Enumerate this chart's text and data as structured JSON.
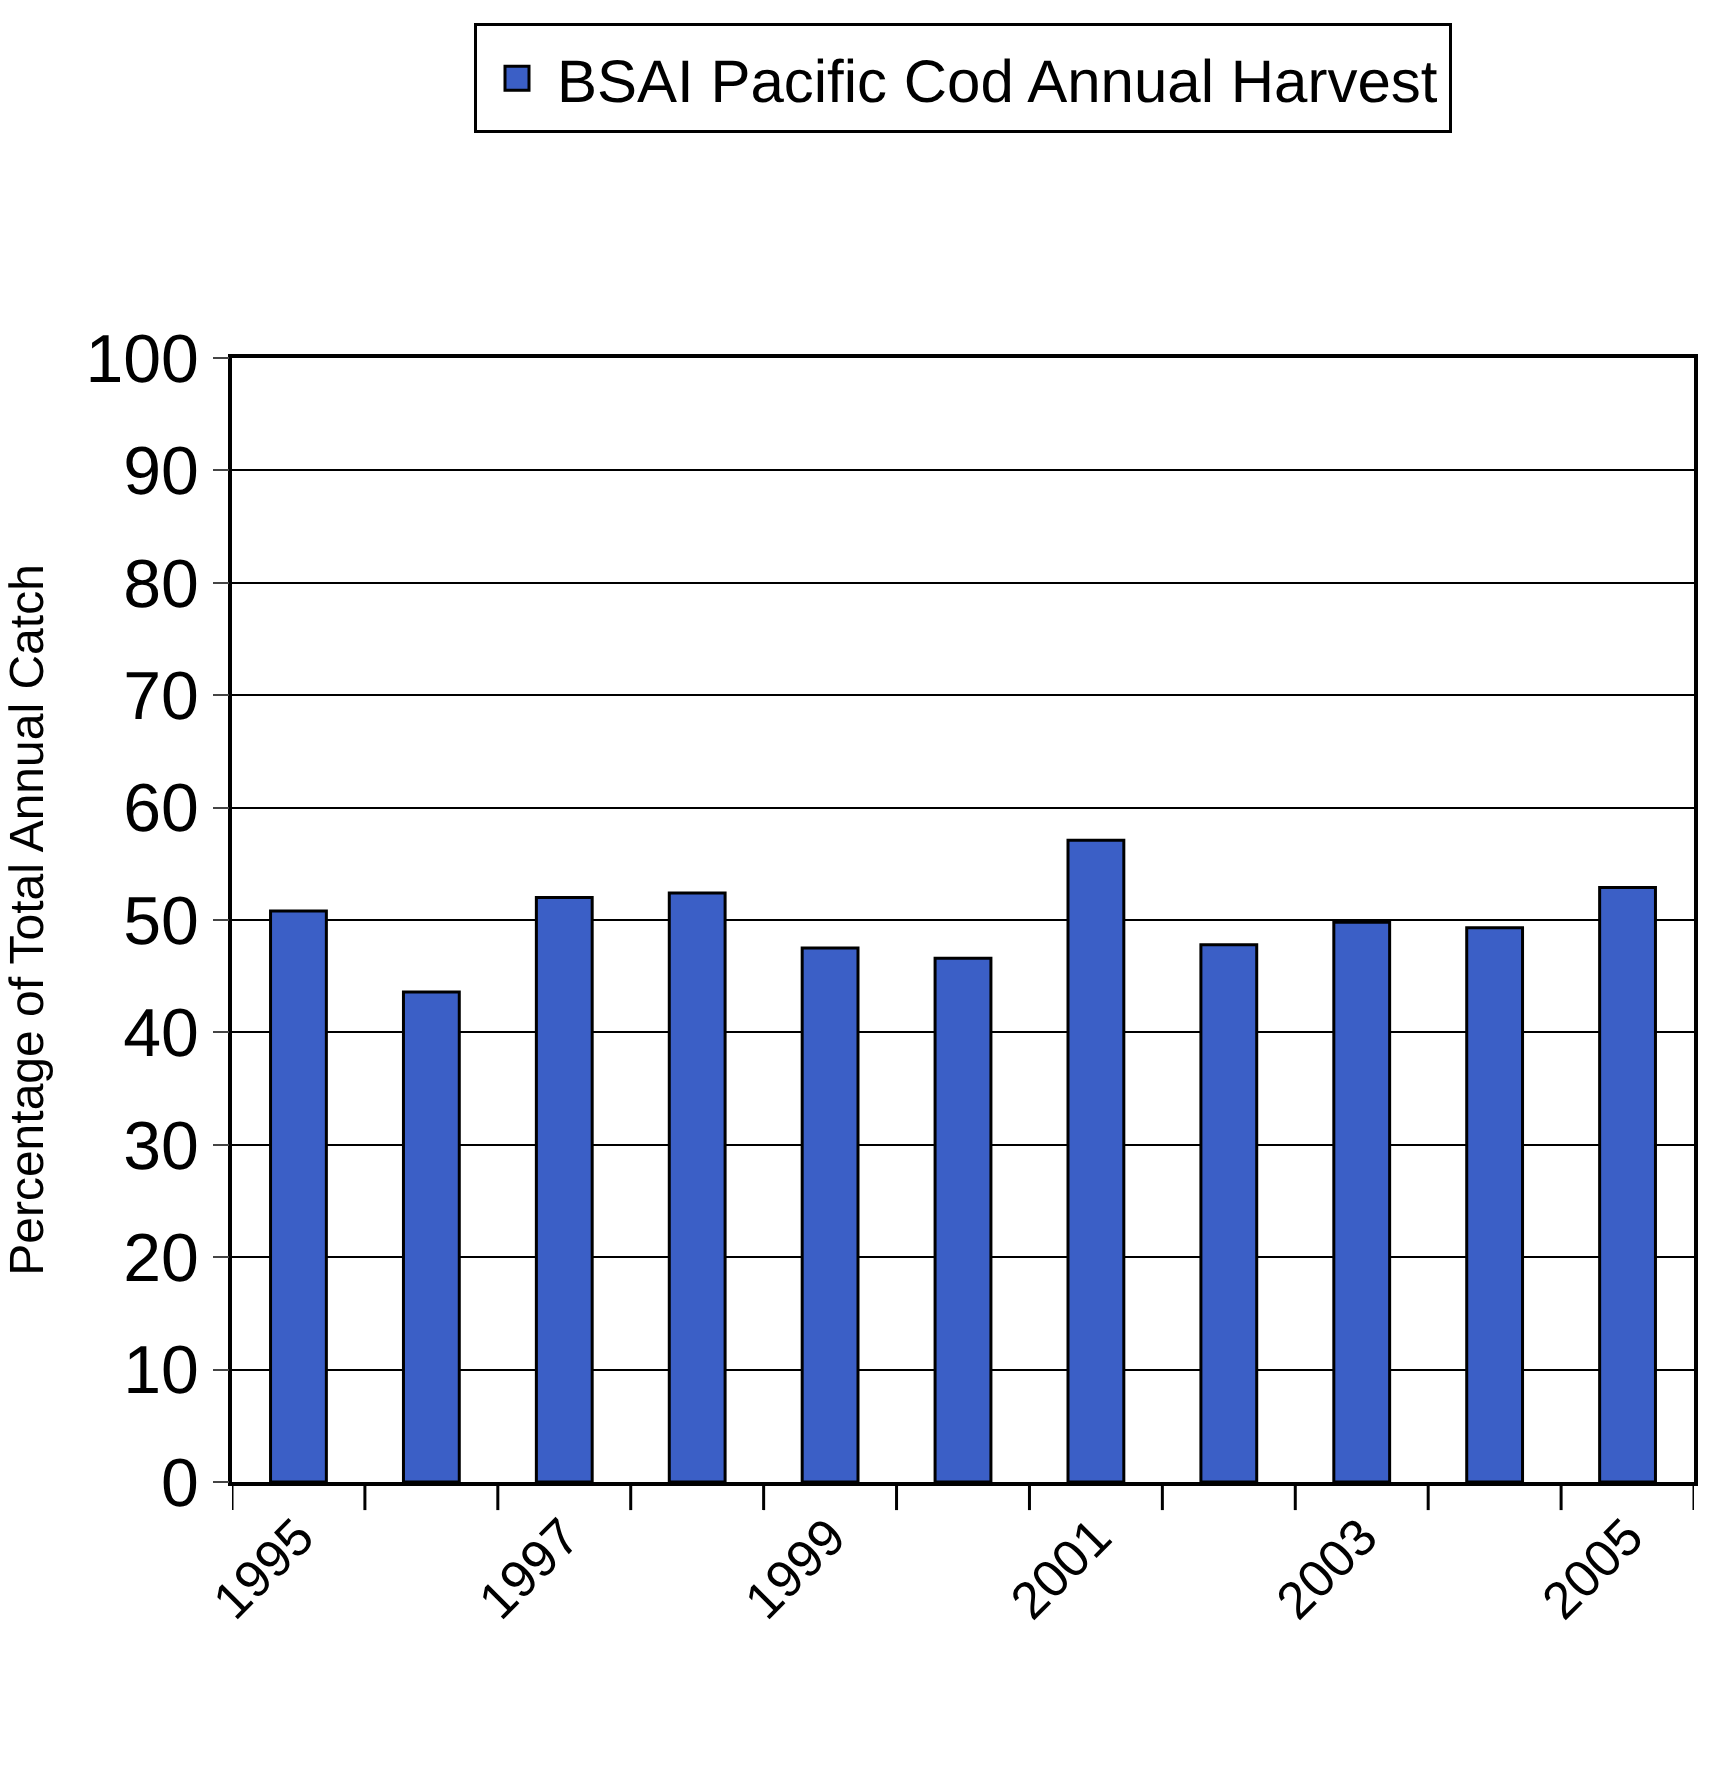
{
  "chart_data": {
    "type": "bar",
    "categories": [
      "1995",
      null,
      "1997",
      null,
      "1999",
      null,
      "2001",
      null,
      "2003",
      null,
      "2005"
    ],
    "series": [
      {
        "name": "BSAI Pacific Cod Annual Harvest",
        "color": "#3b5fc6",
        "values": [
          50.8,
          43.6,
          52,
          52.4,
          47.5,
          46.6,
          57.1,
          47.8,
          49.8,
          49.3,
          52.9
        ]
      }
    ],
    "ylabel": "Percentage of Total Annual Catch",
    "ylim": [
      0,
      100
    ],
    "yticks": [
      0,
      10,
      20,
      30,
      40,
      50,
      60,
      70,
      80,
      90,
      100
    ],
    "grid": "y",
    "legend": "top"
  }
}
